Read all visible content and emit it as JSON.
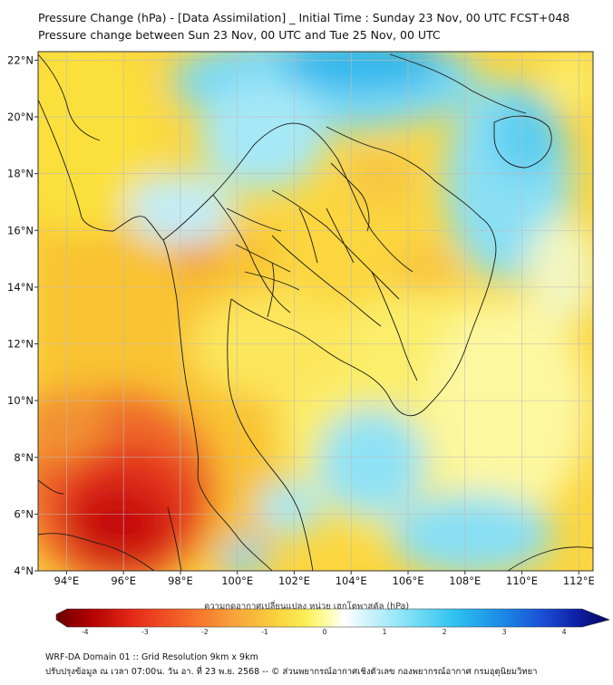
{
  "header": {
    "title_line1": "Pressure Change (hPa) - [Data Assimilation] _ Initial Time : Sunday 23 Nov, 00 UTC FCST+048",
    "title_line2": "Pressure change between Sun 23 Nov, 00 UTC and Tue 25 Nov, 00 UTC"
  },
  "map": {
    "lat_labels": [
      "22°N",
      "20°N",
      "18°N",
      "16°N",
      "14°N",
      "12°N",
      "10°N",
      "8°N",
      "6°N",
      "4°N"
    ],
    "lat_values": [
      22,
      20,
      18,
      16,
      14,
      12,
      10,
      8,
      6,
      4
    ],
    "lon_labels": [
      "94°E",
      "96°E",
      "98°E",
      "100°E",
      "102°E",
      "104°E",
      "106°E",
      "108°E",
      "110°E",
      "112°E"
    ],
    "lon_values": [
      94,
      96,
      98,
      100,
      102,
      104,
      106,
      108,
      110,
      112
    ],
    "lon_range": [
      93,
      112.5
    ],
    "lat_range": [
      4,
      22.3
    ],
    "grid": true
  },
  "colorbar": {
    "label": "ความกดอากาศเปลี่ยนแปลง หน่วย เฮกโตพาสคัล (hPa)",
    "ticks": [
      "-4",
      "-3",
      "-2",
      "-1",
      "0",
      "1",
      "2",
      "3",
      "4"
    ],
    "tick_values": [
      -4,
      -3,
      -2,
      -1,
      0,
      1,
      2,
      3,
      4
    ],
    "range": [
      -4.3,
      4.3
    ],
    "colors": [
      "#6a0000",
      "#b00000",
      "#e62a1a",
      "#f56a2a",
      "#f7a23a",
      "#f9cd3c",
      "#fbee55",
      "#fdfda8",
      "#ffffff",
      "#c8f2fb",
      "#7fe0f6",
      "#2fc2ef",
      "#1b8ee6",
      "#1a4fd6",
      "#0f1fa6",
      "#05055a"
    ]
  },
  "footer": {
    "line1": "WRF-DA Domain 01 :: Grid Resolution 9km x 9km",
    "line2": "ปรับปรุงข้อมูล ณ เวลา 07:00น. วัน อา. ที่ 23 พ.ย. 2568 -- © ส่วนพยากรณ์อากาศเชิงตัวเลข กองพยากรณ์อากาศ กรมอุตุนิยมวิทยา"
  }
}
